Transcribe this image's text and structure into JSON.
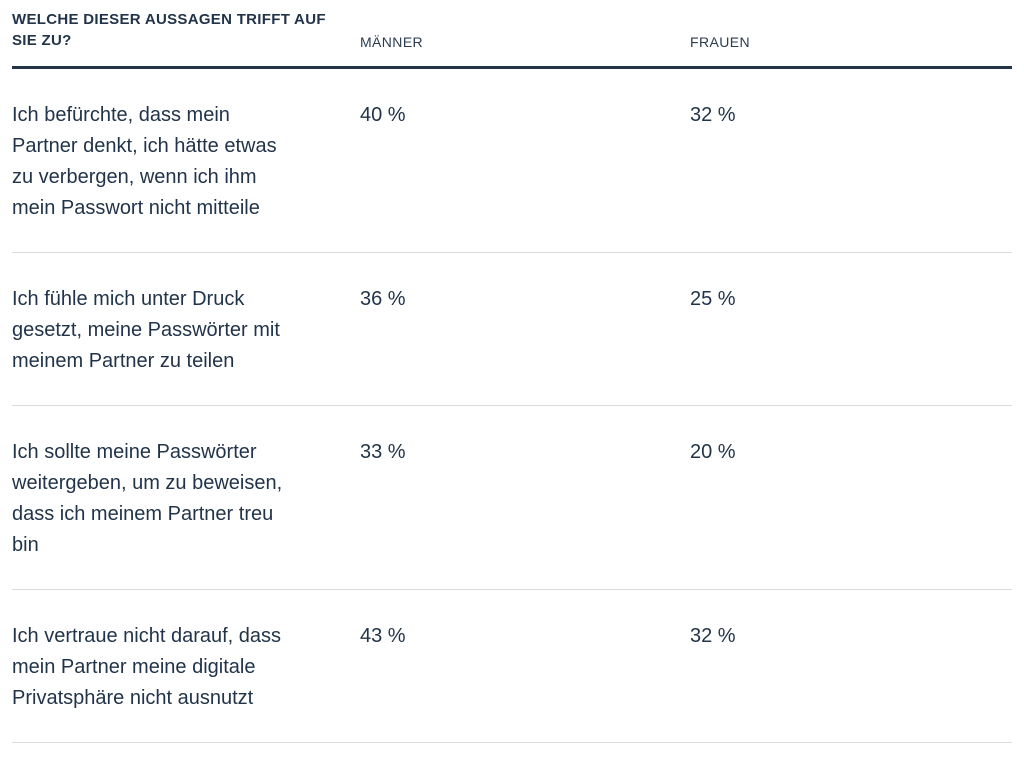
{
  "table": {
    "header": {
      "question": "WELCHE DIESER AUSSAGEN TRIFFT AUF\nSIE ZU?",
      "col_men": "MÄNNER",
      "col_women": "FRAUEN"
    },
    "rows": [
      {
        "statement": "Ich befürchte, dass mein\nPartner denkt, ich hätte etwas\nzu verbergen, wenn ich ihm\nmein Passwort nicht mitteile",
        "men": "40 %",
        "women": "32 %"
      },
      {
        "statement": "Ich fühle mich unter Druck\ngesetzt, meine Passwörter mit\nmeinem Partner zu teilen",
        "men": "36 %",
        "women": "25 %"
      },
      {
        "statement": "Ich sollte meine Passwörter\nweitergeben, um zu beweisen,\ndass ich meinem Partner treu\nbin",
        "men": "33 %",
        "women": "20 %"
      },
      {
        "statement": "Ich vertraue nicht darauf, dass\nmein Partner meine digitale\nPrivatsphäre nicht ausnutzt",
        "men": "43 %",
        "women": "32 %"
      }
    ],
    "colors": {
      "text": "#22344a",
      "heavy_rule": "#22344a",
      "light_rule": "#d8dce1",
      "background": "#ffffff"
    }
  },
  "chart_data": {
    "type": "table",
    "title": "WELCHE DIESER AUSSAGEN TRIFFT AUF SIE ZU?",
    "columns": [
      "WELCHE DIESER AUSSAGEN TRIFFT AUF SIE ZU?",
      "MÄNNER",
      "FRAUEN"
    ],
    "categories": [
      "Ich befürchte, dass mein Partner denkt, ich hätte etwas zu verbergen, wenn ich ihm mein Passwort nicht mitteile",
      "Ich fühle mich unter Druck gesetzt, meine Passwörter mit meinem Partner zu teilen",
      "Ich sollte meine Passwörter weitergeben, um zu beweisen, dass ich meinem Partner treu bin",
      "Ich vertraue nicht darauf, dass mein Partner meine digitale Privatsphäre nicht ausnutzt"
    ],
    "series": [
      {
        "name": "MÄNNER",
        "values": [
          40,
          36,
          33,
          43
        ],
        "unit": "%"
      },
      {
        "name": "FRAUEN",
        "values": [
          32,
          25,
          20,
          32
        ],
        "unit": "%"
      }
    ]
  }
}
